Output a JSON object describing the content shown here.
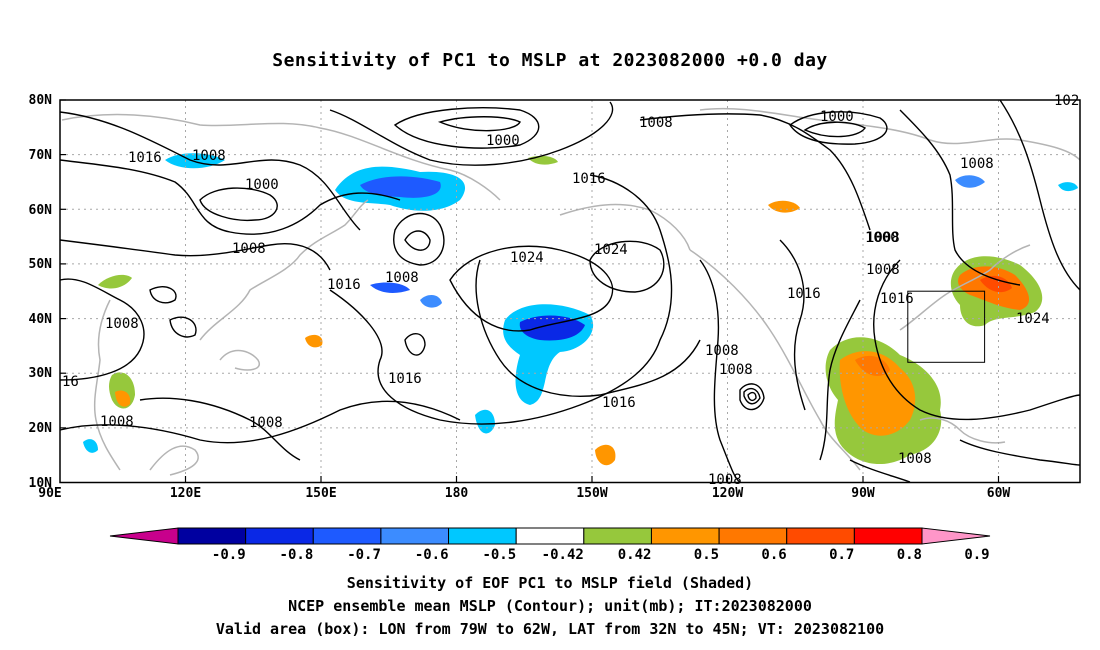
{
  "title": "Sensitivity of PC1 to MSLP at 2023082000 +0.0 day",
  "lat_labels": [
    "80N",
    "70N",
    "60N",
    "50N",
    "40N",
    "30N",
    "20N",
    "10N"
  ],
  "lon_labels": [
    "90E",
    "120E",
    "150E",
    "180",
    "150W",
    "120W",
    "90W",
    "60W"
  ],
  "contour_labels": [
    "1016",
    "1008",
    "1000",
    "1008",
    "1016",
    "1000",
    "1008",
    "1008",
    "1000",
    "1008",
    "1016",
    "1008",
    "1024",
    "1024",
    "1016",
    "1008",
    "1000",
    "1008",
    "1016",
    "1024",
    "16",
    "1008",
    "1008",
    "1016",
    "1008",
    "1008",
    "1016",
    "1008",
    "1008",
    "102"
  ],
  "colorbar": {
    "colors": [
      "#c8008c",
      "#0000a0",
      "#0a28e6",
      "#1e5aff",
      "#3c8cff",
      "#00c8ff",
      "#ffffff",
      "#96c83c",
      "#ff9600",
      "#ff7800",
      "#ff4b00",
      "#ff0000",
      "#ff96c8"
    ],
    "labels": [
      "-0.9",
      "-0.8",
      "-0.7",
      "-0.6",
      "-0.5",
      "-0.42",
      "0.42",
      "0.5",
      "0.6",
      "0.7",
      "0.8",
      "0.9"
    ]
  },
  "captions": {
    "line1": "Sensitivity of EOF PC1 to MSLP field (Shaded)",
    "line2": "NCEP ensemble mean MSLP (Contour); unit(mb); IT:2023082000",
    "line3": "Valid area (box): LON from 79W to 62W, LAT from 32N to 45N; VT: 2023082100"
  }
}
